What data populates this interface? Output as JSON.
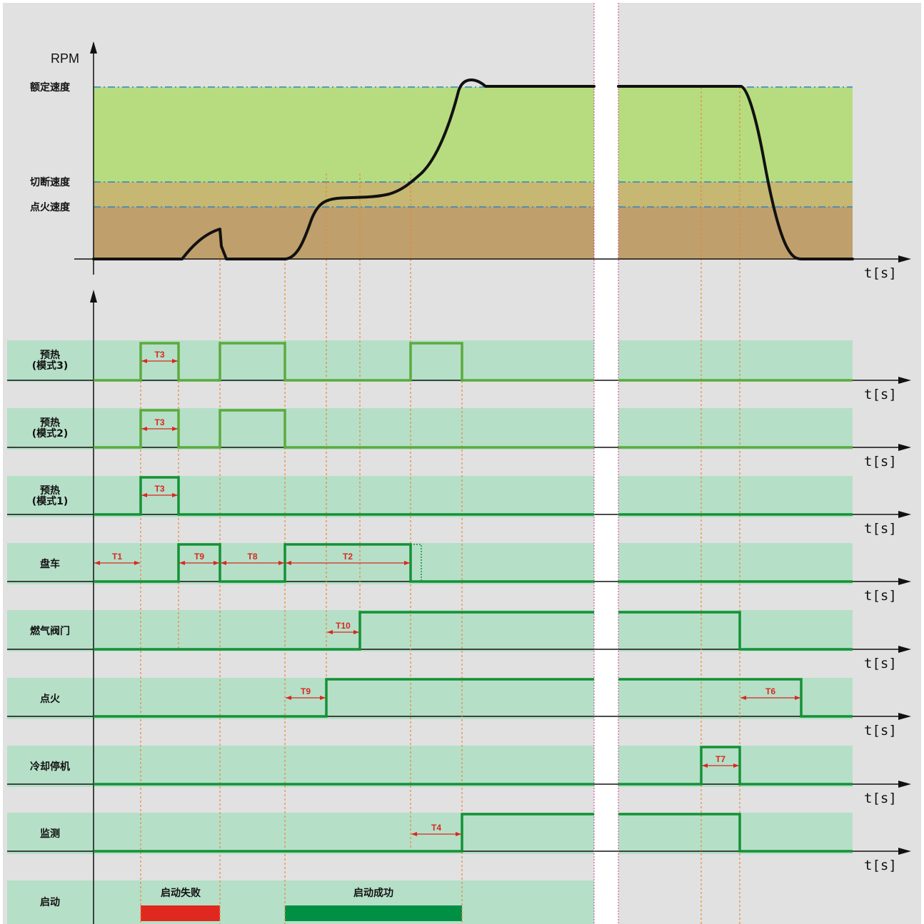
{
  "rpm_chart": {
    "y_axis_label": "RPM",
    "x_axis_label": "t[s]",
    "levels": [
      "额定速度",
      "切断速度",
      "点火速度"
    ]
  },
  "rows": [
    {
      "key": "preheat3",
      "label_lines": [
        "预热",
        "(模式3)"
      ],
      "time_unit": "t[s]"
    },
    {
      "key": "preheat2",
      "label_lines": [
        "预热",
        "(模式2)"
      ],
      "time_unit": "t[s]"
    },
    {
      "key": "preheat1",
      "label_lines": [
        "预热",
        "(模式1)"
      ],
      "time_unit": "t[s]"
    },
    {
      "key": "cranking",
      "label_lines": [
        "盘车"
      ],
      "time_unit": "t[s]"
    },
    {
      "key": "gas_valve",
      "label_lines": [
        "燃气阀门"
      ],
      "time_unit": "t[s]"
    },
    {
      "key": "ignition",
      "label_lines": [
        "点火"
      ],
      "time_unit": "t[s]"
    },
    {
      "key": "cooldown",
      "label_lines": [
        "冷却停机"
      ],
      "time_unit": "t[s]"
    },
    {
      "key": "monitoring",
      "label_lines": [
        "监测"
      ],
      "time_unit": "t[s]"
    },
    {
      "key": "start",
      "label_lines": [
        "启动"
      ],
      "time_unit": ""
    }
  ],
  "timers": {
    "t1": "T1",
    "t2": "T2",
    "t3": "T3",
    "t4": "T4",
    "t6": "T6",
    "t7": "T7",
    "t8": "T8",
    "t9": "T9",
    "t10": "T10"
  },
  "start_status": {
    "failed": "启动失败",
    "success": "启动成功"
  },
  "colors": {
    "background": "#e1e1e1",
    "row_band": "#b6dfc8",
    "zone_rated": "#b6dc7f",
    "zone_cutoff": "#c6b772",
    "zone_ignition": "#bf9f6b",
    "level_line": "#2a86c8",
    "signal_light": "#5aac3c",
    "signal_dark": "#139235",
    "event_line": "#e6883a",
    "timer_red": "#d8281f",
    "fail_bar": "#e0281f",
    "success_bar": "#009044"
  }
}
